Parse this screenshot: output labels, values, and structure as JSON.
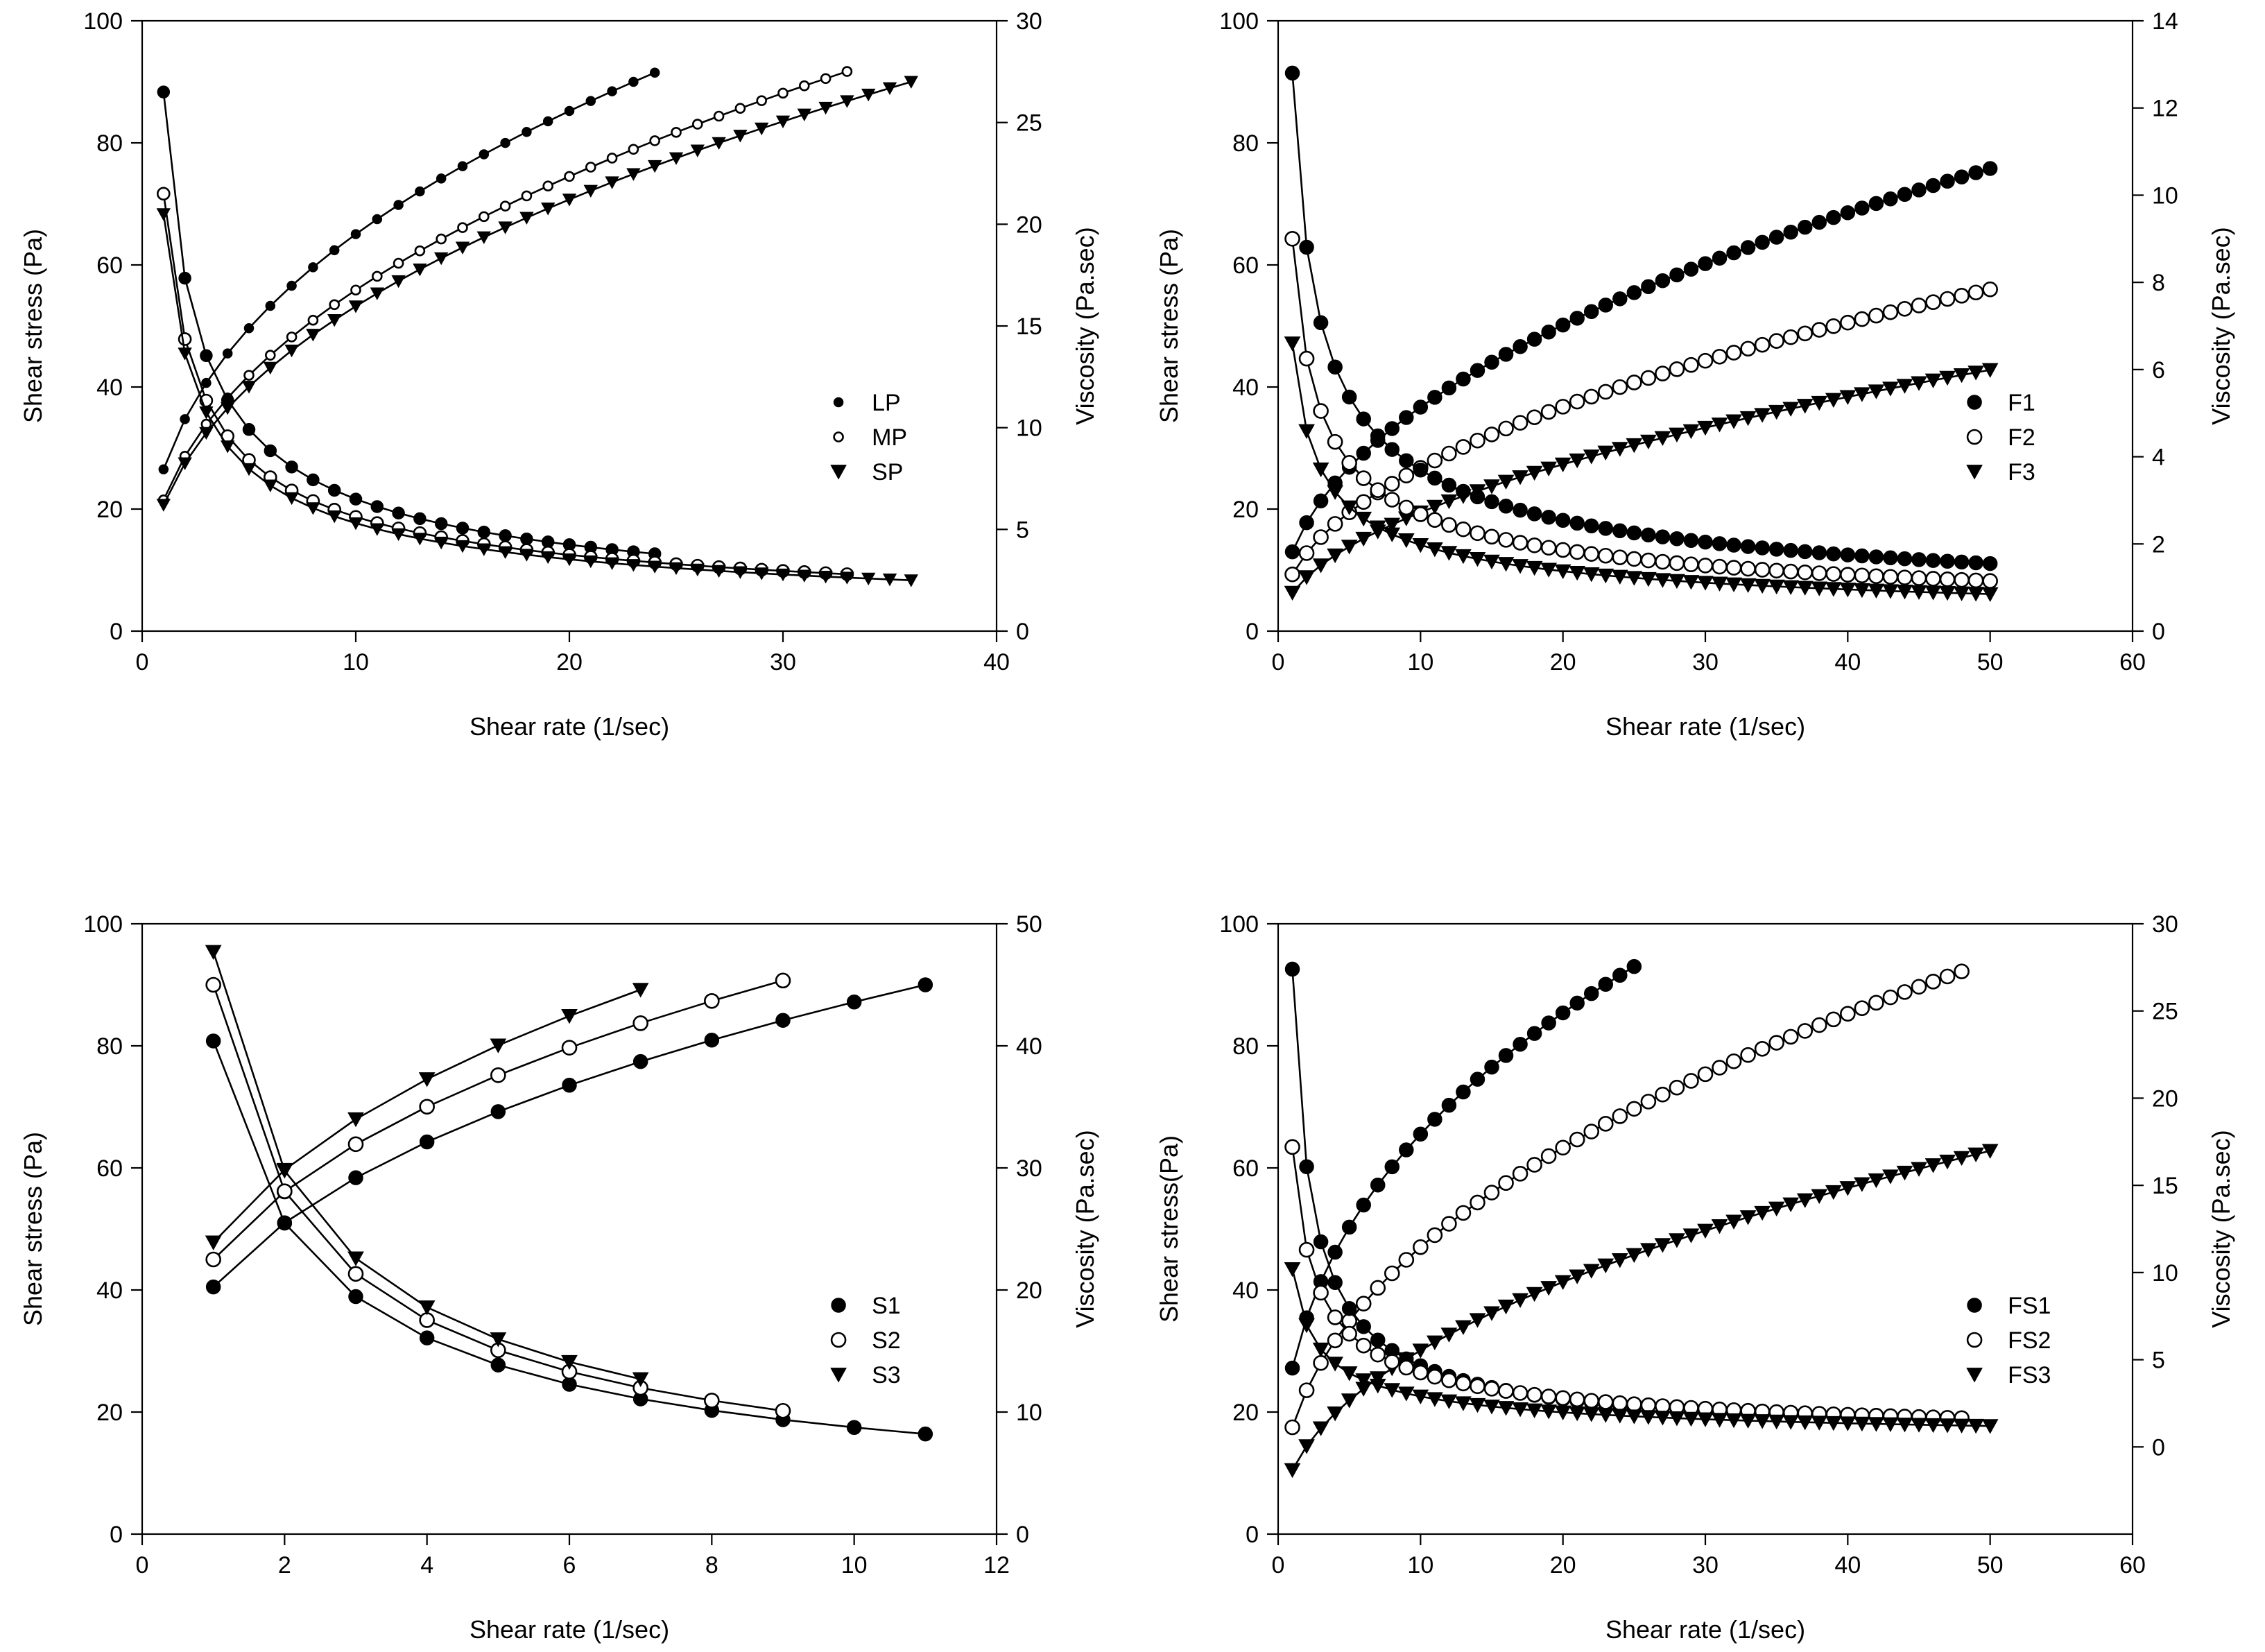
{
  "figure": {
    "description_free": true,
    "colors": {
      "ink": "#000000",
      "background": "#ffffff"
    }
  },
  "chart_data": [
    {
      "id": "panel-top-left",
      "type": "scatter",
      "xlabel": "Shear rate (1/sec)",
      "ylabel": "Shear stress (Pa)",
      "y2label": "Viscosity (Pa.sec)",
      "xlim": [
        0,
        40
      ],
      "xticks": [
        0,
        10,
        20,
        30,
        40
      ],
      "ylim": [
        0,
        100
      ],
      "yticks": [
        0,
        20,
        40,
        60,
        80,
        100
      ],
      "y2lim": [
        0,
        30
      ],
      "y2ticks": [
        0,
        5,
        10,
        15,
        20,
        25,
        30
      ],
      "legend_position": "right-middle",
      "series": [
        {
          "name": "LP",
          "marker": "dot-small",
          "axis": "left",
          "model": "power",
          "x_max": 24,
          "first": 26.5,
          "last": 91.5
        },
        {
          "name": "MP",
          "marker": "circle-small",
          "axis": "left",
          "model": "power",
          "x_max": 33,
          "first": 21.5,
          "last": 91.7
        },
        {
          "name": "SP",
          "marker": "triangle",
          "axis": "left",
          "model": "power",
          "x_max": 36,
          "first": 20.7,
          "last": 90.0
        },
        {
          "name": "LP",
          "marker": "dot",
          "axis": "right",
          "model": "viscosity",
          "x_max": 24,
          "first": 26.5,
          "last": 3.8,
          "hidden_in_legend": true
        },
        {
          "name": "MP",
          "marker": "circle",
          "axis": "right",
          "model": "viscosity",
          "x_max": 33,
          "first": 21.5,
          "last": 2.8,
          "hidden_in_legend": true
        },
        {
          "name": "SP",
          "marker": "triangle",
          "axis": "right",
          "model": "viscosity",
          "x_max": 36,
          "first": 20.5,
          "last": 2.5,
          "hidden_in_legend": true
        }
      ]
    },
    {
      "id": "panel-top-right",
      "type": "scatter",
      "xlabel": "Shear rate (1/sec)",
      "ylabel": "Shear stress (Pa)",
      "y2label": "Viscosity (Pa.sec)",
      "xlim": [
        0,
        60
      ],
      "xticks": [
        0,
        10,
        20,
        30,
        40,
        50,
        60
      ],
      "ylim": [
        0,
        100
      ],
      "yticks": [
        0,
        20,
        40,
        60,
        80,
        100
      ],
      "y2lim": [
        0,
        14
      ],
      "y2ticks": [
        0,
        2,
        4,
        6,
        8,
        10,
        12,
        14
      ],
      "legend_position": "right-middle",
      "series": [
        {
          "name": "F1",
          "marker": "dot",
          "axis": "left",
          "model": "power",
          "x_max": 50,
          "first": 13.0,
          "last": 75.8
        },
        {
          "name": "F2",
          "marker": "circle",
          "axis": "left",
          "model": "power",
          "x_max": 50,
          "first": 9.3,
          "last": 56.0
        },
        {
          "name": "F3",
          "marker": "triangle",
          "axis": "left",
          "model": "power",
          "x_max": 50,
          "first": 6.3,
          "last": 42.8
        },
        {
          "name": "F1",
          "marker": "dot",
          "axis": "right",
          "model": "viscosity",
          "x_max": 50,
          "first": 12.8,
          "last": 1.55,
          "hidden_in_legend": true
        },
        {
          "name": "F2",
          "marker": "circle",
          "axis": "right",
          "model": "viscosity",
          "x_max": 50,
          "first": 9.0,
          "last": 1.15,
          "hidden_in_legend": true
        },
        {
          "name": "F3",
          "marker": "triangle",
          "axis": "right",
          "model": "viscosity",
          "x_max": 50,
          "first": 6.6,
          "last": 0.85,
          "hidden_in_legend": true
        }
      ]
    },
    {
      "id": "panel-bottom-left",
      "type": "scatter",
      "xlabel": "Shear rate (1/sec)",
      "ylabel": "Shear stress (Pa)",
      "y2label": "Viscosity (Pa.sec)",
      "xlim": [
        0,
        12
      ],
      "xticks": [
        0,
        2,
        4,
        6,
        8,
        10,
        12
      ],
      "ylim": [
        0,
        100
      ],
      "yticks": [
        0,
        20,
        40,
        60,
        80,
        100
      ],
      "y2lim": [
        0,
        50
      ],
      "y2ticks": [
        0,
        10,
        20,
        30,
        40,
        50
      ],
      "legend_position": "right-middle",
      "series": [
        {
          "name": "S1",
          "marker": "dot",
          "axis": "left",
          "model": "power",
          "x_max": 11,
          "first": 40.5,
          "last": 90.0
        },
        {
          "name": "S2",
          "marker": "circle",
          "axis": "left",
          "model": "power",
          "x_max": 9,
          "first": 45.0,
          "last": 90.7
        },
        {
          "name": "S3",
          "marker": "triangle",
          "axis": "left",
          "model": "power",
          "x_max": 7,
          "first": 47.8,
          "last": 89.2
        },
        {
          "name": "S1",
          "marker": "dot",
          "axis": "right",
          "model": "viscosity",
          "x_max": 11,
          "first": 40.4,
          "last": 8.2,
          "hidden_in_legend": true
        },
        {
          "name": "S2",
          "marker": "circle",
          "axis": "right",
          "model": "viscosity",
          "x_max": 9,
          "first": 45.0,
          "last": 10.1,
          "hidden_in_legend": true
        },
        {
          "name": "S3",
          "marker": "triangle",
          "axis": "right",
          "model": "viscosity",
          "x_max": 7,
          "first": 47.7,
          "last": 12.7,
          "hidden_in_legend": true
        }
      ]
    },
    {
      "id": "panel-bottom-right",
      "type": "scatter",
      "xlabel": "Shear rate (1/sec)",
      "ylabel": "Shear stress(Pa)",
      "y2label": "Viscosity (Pa.sec)",
      "xlim": [
        0,
        60
      ],
      "xticks": [
        0,
        10,
        20,
        30,
        40,
        50,
        60
      ],
      "ylim": [
        0,
        100
      ],
      "yticks": [
        0,
        20,
        40,
        60,
        80,
        100
      ],
      "y2lim": [
        -5,
        30
      ],
      "y2ticks": [
        0,
        5,
        10,
        15,
        20,
        25,
        30
      ],
      "legend_position": "right-middle",
      "series": [
        {
          "name": "FS1",
          "marker": "dot",
          "axis": "left",
          "model": "power",
          "x_max": 25,
          "first": 27.2,
          "last": 93.0
        },
        {
          "name": "FS2",
          "marker": "circle",
          "axis": "left",
          "model": "power",
          "x_max": 48,
          "first": 17.5,
          "last": 92.2
        },
        {
          "name": "FS3",
          "marker": "triangle",
          "axis": "left",
          "model": "power",
          "x_max": 50,
          "first": 10.5,
          "last": 62.8
        },
        {
          "name": "FS1",
          "marker": "dot",
          "axis": "right",
          "model": "viscosity",
          "x_max": 25,
          "first": 27.4,
          "last": 2.3,
          "hidden_in_legend": true
        },
        {
          "name": "FS2",
          "marker": "circle",
          "axis": "right",
          "model": "viscosity",
          "x_max": 48,
          "first": 17.2,
          "last": 1.65,
          "hidden_in_legend": true
        },
        {
          "name": "FS3",
          "marker": "triangle",
          "axis": "right",
          "model": "viscosity",
          "x_max": 50,
          "first": 10.2,
          "last": 1.2,
          "hidden_in_legend": true
        }
      ]
    }
  ]
}
